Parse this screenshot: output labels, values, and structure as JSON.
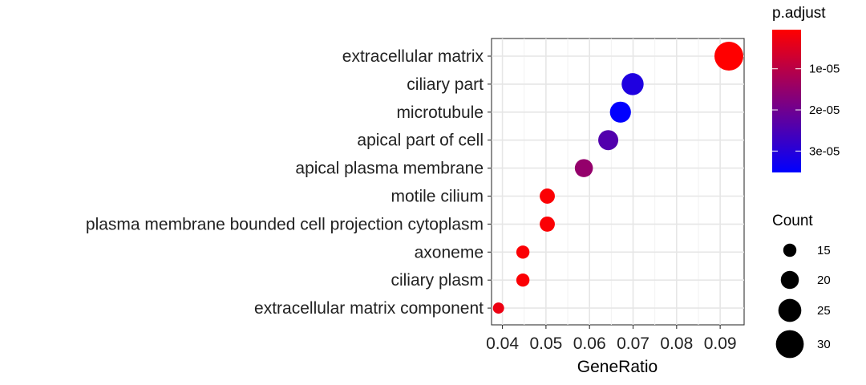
{
  "chart_data": {
    "type": "scatter",
    "title": "",
    "xlabel": "GeneRatio",
    "ylabel": "",
    "xlim": [
      0.0375,
      0.0955
    ],
    "xticks": [
      0.04,
      0.05,
      0.06,
      0.07,
      0.08,
      0.09
    ],
    "xtick_labels": [
      "0.04",
      "0.05",
      "0.06",
      "0.07",
      "0.08",
      "0.09"
    ],
    "grid": true,
    "categories": [
      "extracellular matrix",
      "ciliary part",
      "microtubule",
      "apical part of cell",
      "apical plasma membrane",
      "motile cilium",
      "plasma membrane bounded cell projection cytoplasm",
      "axoneme",
      "ciliary plasm",
      "extracellular matrix component"
    ],
    "points": [
      {
        "term": "extracellular matrix",
        "gene_ratio": 0.092,
        "count": 31,
        "p_adjust": 5e-07
      },
      {
        "term": "ciliary part",
        "gene_ratio": 0.0699,
        "count": 24,
        "p_adjust": 3.1e-05
      },
      {
        "term": "microtubule",
        "gene_ratio": 0.0671,
        "count": 23,
        "p_adjust": 3.5e-05
      },
      {
        "term": "apical part of cell",
        "gene_ratio": 0.0643,
        "count": 22,
        "p_adjust": 2.4e-05
      },
      {
        "term": "apical plasma membrane",
        "gene_ratio": 0.0587,
        "count": 20,
        "p_adjust": 1.5e-05
      },
      {
        "term": "motile cilium",
        "gene_ratio": 0.0503,
        "count": 17,
        "p_adjust": 1e-06
      },
      {
        "term": "plasma membrane bounded cell projection cytoplasm",
        "gene_ratio": 0.0503,
        "count": 17,
        "p_adjust": 1e-06
      },
      {
        "term": "axoneme",
        "gene_ratio": 0.0447,
        "count": 15,
        "p_adjust": 1e-06
      },
      {
        "term": "ciliary plasm",
        "gene_ratio": 0.0447,
        "count": 15,
        "p_adjust": 1e-06
      },
      {
        "term": "extracellular matrix component",
        "gene_ratio": 0.0391,
        "count": 13,
        "p_adjust": 3e-06
      }
    ],
    "color_legend": {
      "title": "p.adjust",
      "min": 5e-07,
      "max": 3.52e-05,
      "low_color": "#ff0000",
      "high_color": "#0000ff",
      "ticks": [
        1e-05,
        2e-05,
        3e-05
      ],
      "tick_labels": [
        "1e-05",
        "2e-05",
        "3e-05"
      ]
    },
    "size_legend": {
      "title": "Count",
      "values": [
        15,
        20,
        25,
        30
      ],
      "labels": [
        "15",
        "20",
        "25",
        "30"
      ],
      "min": 13,
      "max": 31
    },
    "legend_position": "right"
  }
}
